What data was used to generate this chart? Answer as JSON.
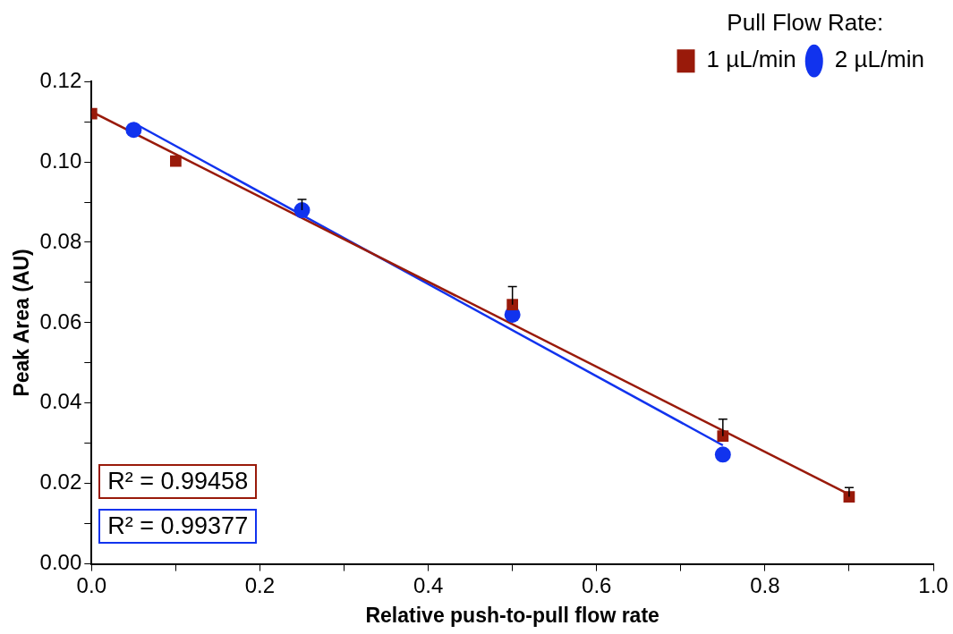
{
  "chart_data": {
    "type": "scatter",
    "xlabel": "Relative push-to-pull flow rate",
    "ylabel": "Peak Area (AU)",
    "legend_title": "Pull Flow Rate:",
    "xlim": [
      0,
      1
    ],
    "ylim": [
      0,
      0.12
    ],
    "xticks": [
      {
        "value": 0,
        "label": "0.0"
      },
      {
        "value": 0.1,
        "label": null
      },
      {
        "value": 0.2,
        "label": "0.2"
      },
      {
        "value": 0.3,
        "label": null
      },
      {
        "value": 0.4,
        "label": "0.4"
      },
      {
        "value": 0.5,
        "label": null
      },
      {
        "value": 0.6,
        "label": "0.6"
      },
      {
        "value": 0.7,
        "label": null
      },
      {
        "value": 0.8,
        "label": "0.8"
      },
      {
        "value": 0.9,
        "label": null
      },
      {
        "value": 1,
        "label": "1.0"
      }
    ],
    "yticks": [
      {
        "value": 0,
        "label": "0.00"
      },
      {
        "value": 0.01,
        "label": null
      },
      {
        "value": 0.02,
        "label": "0.02"
      },
      {
        "value": 0.03,
        "label": null
      },
      {
        "value": 0.04,
        "label": "0.04"
      },
      {
        "value": 0.05,
        "label": null
      },
      {
        "value": 0.06,
        "label": "0.06"
      },
      {
        "value": 0.07,
        "label": null
      },
      {
        "value": 0.08,
        "label": "0.08"
      },
      {
        "value": 0.09,
        "label": null
      },
      {
        "value": 0.1,
        "label": "0.10"
      },
      {
        "value": 0.11,
        "label": null
      },
      {
        "value": 0.12,
        "label": "0.12"
      }
    ],
    "grid": false,
    "legend": "top right",
    "series": [
      {
        "name": "1 µL/min",
        "color": "#991a0a",
        "marker": "square",
        "x": [
          0,
          0.1,
          0.5,
          0.75,
          0.9
        ],
        "values": [
          0.112,
          0.1002,
          0.0645,
          0.0318,
          0.0167
        ],
        "errors": [
          null,
          null,
          [
            0.0645,
            0.069
          ],
          [
            0.0318,
            0.036
          ],
          [
            0.0167,
            0.019
          ]
        ]
      },
      {
        "name": "2 µL/min",
        "color": "#1133ee",
        "marker": "circle",
        "x": [
          0.05,
          0.25,
          0.5,
          0.75
        ],
        "values": [
          0.108,
          0.088,
          0.062,
          0.0272
        ],
        "errors": [
          null,
          [
            0.088,
            0.0907
          ],
          null,
          null
        ]
      },
      {
        "type": "line",
        "color": "#991a0a",
        "marker": "none",
        "x": [
          0,
          0.9
        ],
        "values": [
          0.1125,
          0.0173
        ]
      },
      {
        "type": "line",
        "color": "#1133ee",
        "marker": "none",
        "x": [
          0.05,
          0.75
        ],
        "values": [
          0.1097,
          0.0295
        ]
      }
    ],
    "annotations": [
      "R² = 0.99458",
      "R² = 0.99377"
    ]
  }
}
